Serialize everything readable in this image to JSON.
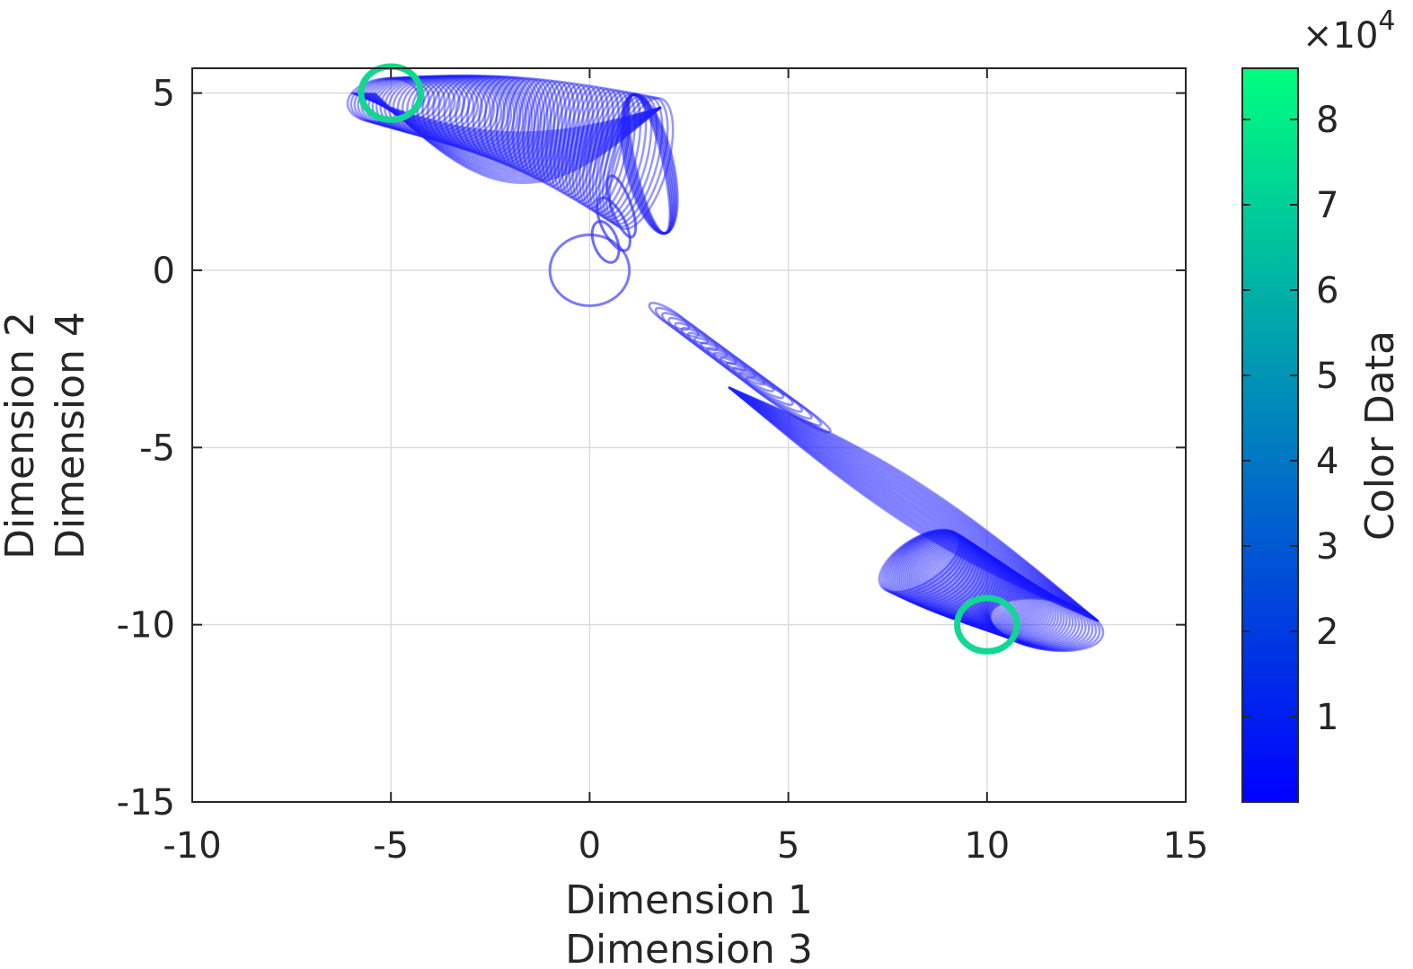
{
  "chart_data": {
    "type": "scatter",
    "xlabel": [
      "Dimension 1",
      "Dimension 3"
    ],
    "ylabel": [
      "Dimension 2",
      "Dimension 4"
    ],
    "xlim": [
      -10,
      15
    ],
    "ylim": [
      -15,
      5.7
    ],
    "xticks": [
      -10,
      -5,
      0,
      5,
      10,
      15
    ],
    "yticks": [
      -15,
      -10,
      -5,
      0,
      5
    ],
    "xtick_labels": [
      "-10",
      "-5",
      "0",
      "5",
      "10",
      "15"
    ],
    "ytick_labels": [
      "-15",
      "-10",
      "-5",
      "0",
      "5"
    ],
    "grid": true,
    "colormap": [
      "#0000ff",
      "#00ff80"
    ],
    "colorbar": {
      "label": "Color Data",
      "exponent": "×10",
      "exponent_power": "4",
      "range": [
        0,
        8.6
      ],
      "ticks": [
        1,
        2,
        3,
        4,
        5,
        6,
        7,
        8
      ],
      "tick_labels": [
        "1",
        "2",
        "3",
        "4",
        "5",
        "6",
        "7",
        "8"
      ]
    },
    "series": [
      {
        "description_value": "start circle",
        "center": [
          0,
          0
        ],
        "radius": [
          1,
          1
        ],
        "color_value": 0
      },
      {
        "description_value": "upper attractor",
        "center": [
          -5,
          5
        ],
        "radius": [
          0.75,
          0.75
        ],
        "color_value": 8.6
      },
      {
        "description_value": "lower attractor",
        "center": [
          10,
          -10
        ],
        "radius": [
          0.75,
          0.75
        ],
        "color_value": 8.6
      }
    ]
  }
}
